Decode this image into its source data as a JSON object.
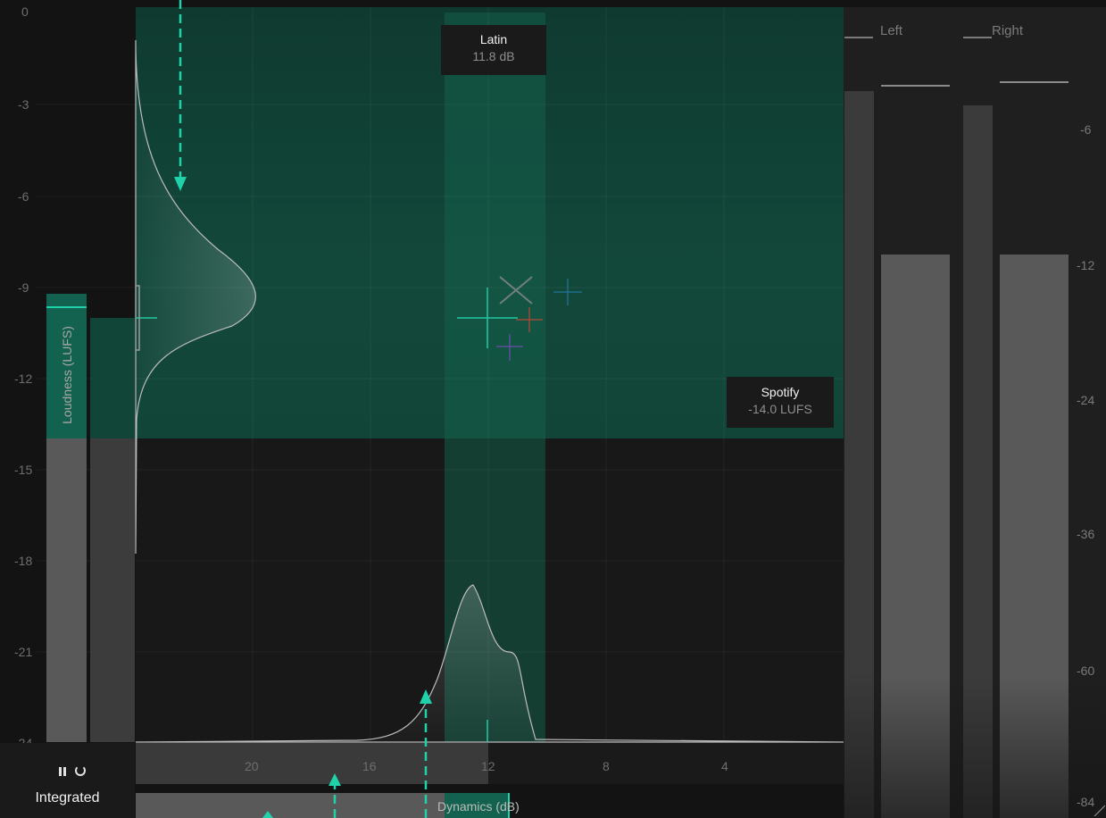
{
  "colors": {
    "background": "#131313",
    "panel": "#1c1c1c",
    "target_zone": "#12473a",
    "accent": "#13c4a0",
    "meter_bar": "#595959",
    "meter_peak": "#3b3b3b"
  },
  "loudness_axis": {
    "title": "Loudness (LUFS)",
    "ticks": [
      "0",
      "-3",
      "-6",
      "-9",
      "-12",
      "-15",
      "-18",
      "-21",
      "-24"
    ]
  },
  "dynamics_axis": {
    "title": "Dynamics",
    "unit": "(dB)",
    "ticks": [
      "20",
      "16",
      "12",
      "8",
      "4"
    ]
  },
  "genre_target": {
    "name": "Latin",
    "value": "11.8 dB"
  },
  "platform_target": {
    "name": "Spotify",
    "value": "-14.0 LUFS"
  },
  "controls": {
    "pause_icon": "pause-icon",
    "reset_icon": "reset-icon",
    "mode_label": "Integrated"
  },
  "level_meter": {
    "channels": [
      "Left",
      "Right"
    ],
    "scale": [
      "-6",
      "-12",
      "-24",
      "-36",
      "-60",
      "-84"
    ]
  },
  "chart_data": [
    {
      "type": "area",
      "name_hint": "loudness distribution",
      "y_unit": "LUFS",
      "y": [
        -2,
        -4,
        -6,
        -7,
        -8,
        -9,
        -9.2,
        -10,
        -10.5,
        -11,
        -12,
        -14,
        -18
      ],
      "density": [
        0.02,
        0.05,
        0.12,
        0.25,
        0.55,
        0.95,
        1.0,
        0.6,
        0.35,
        0.15,
        0.05,
        0.02,
        0.01
      ]
    },
    {
      "type": "area",
      "name_hint": "dynamics distribution",
      "x_unit": "dB",
      "x": [
        20,
        16,
        15,
        14,
        13,
        12.5,
        12,
        11.5,
        11,
        10.5,
        10
      ],
      "density": [
        0.0,
        0.02,
        0.1,
        0.35,
        0.75,
        1.0,
        0.7,
        0.45,
        0.45,
        0.2,
        0.0
      ]
    }
  ]
}
